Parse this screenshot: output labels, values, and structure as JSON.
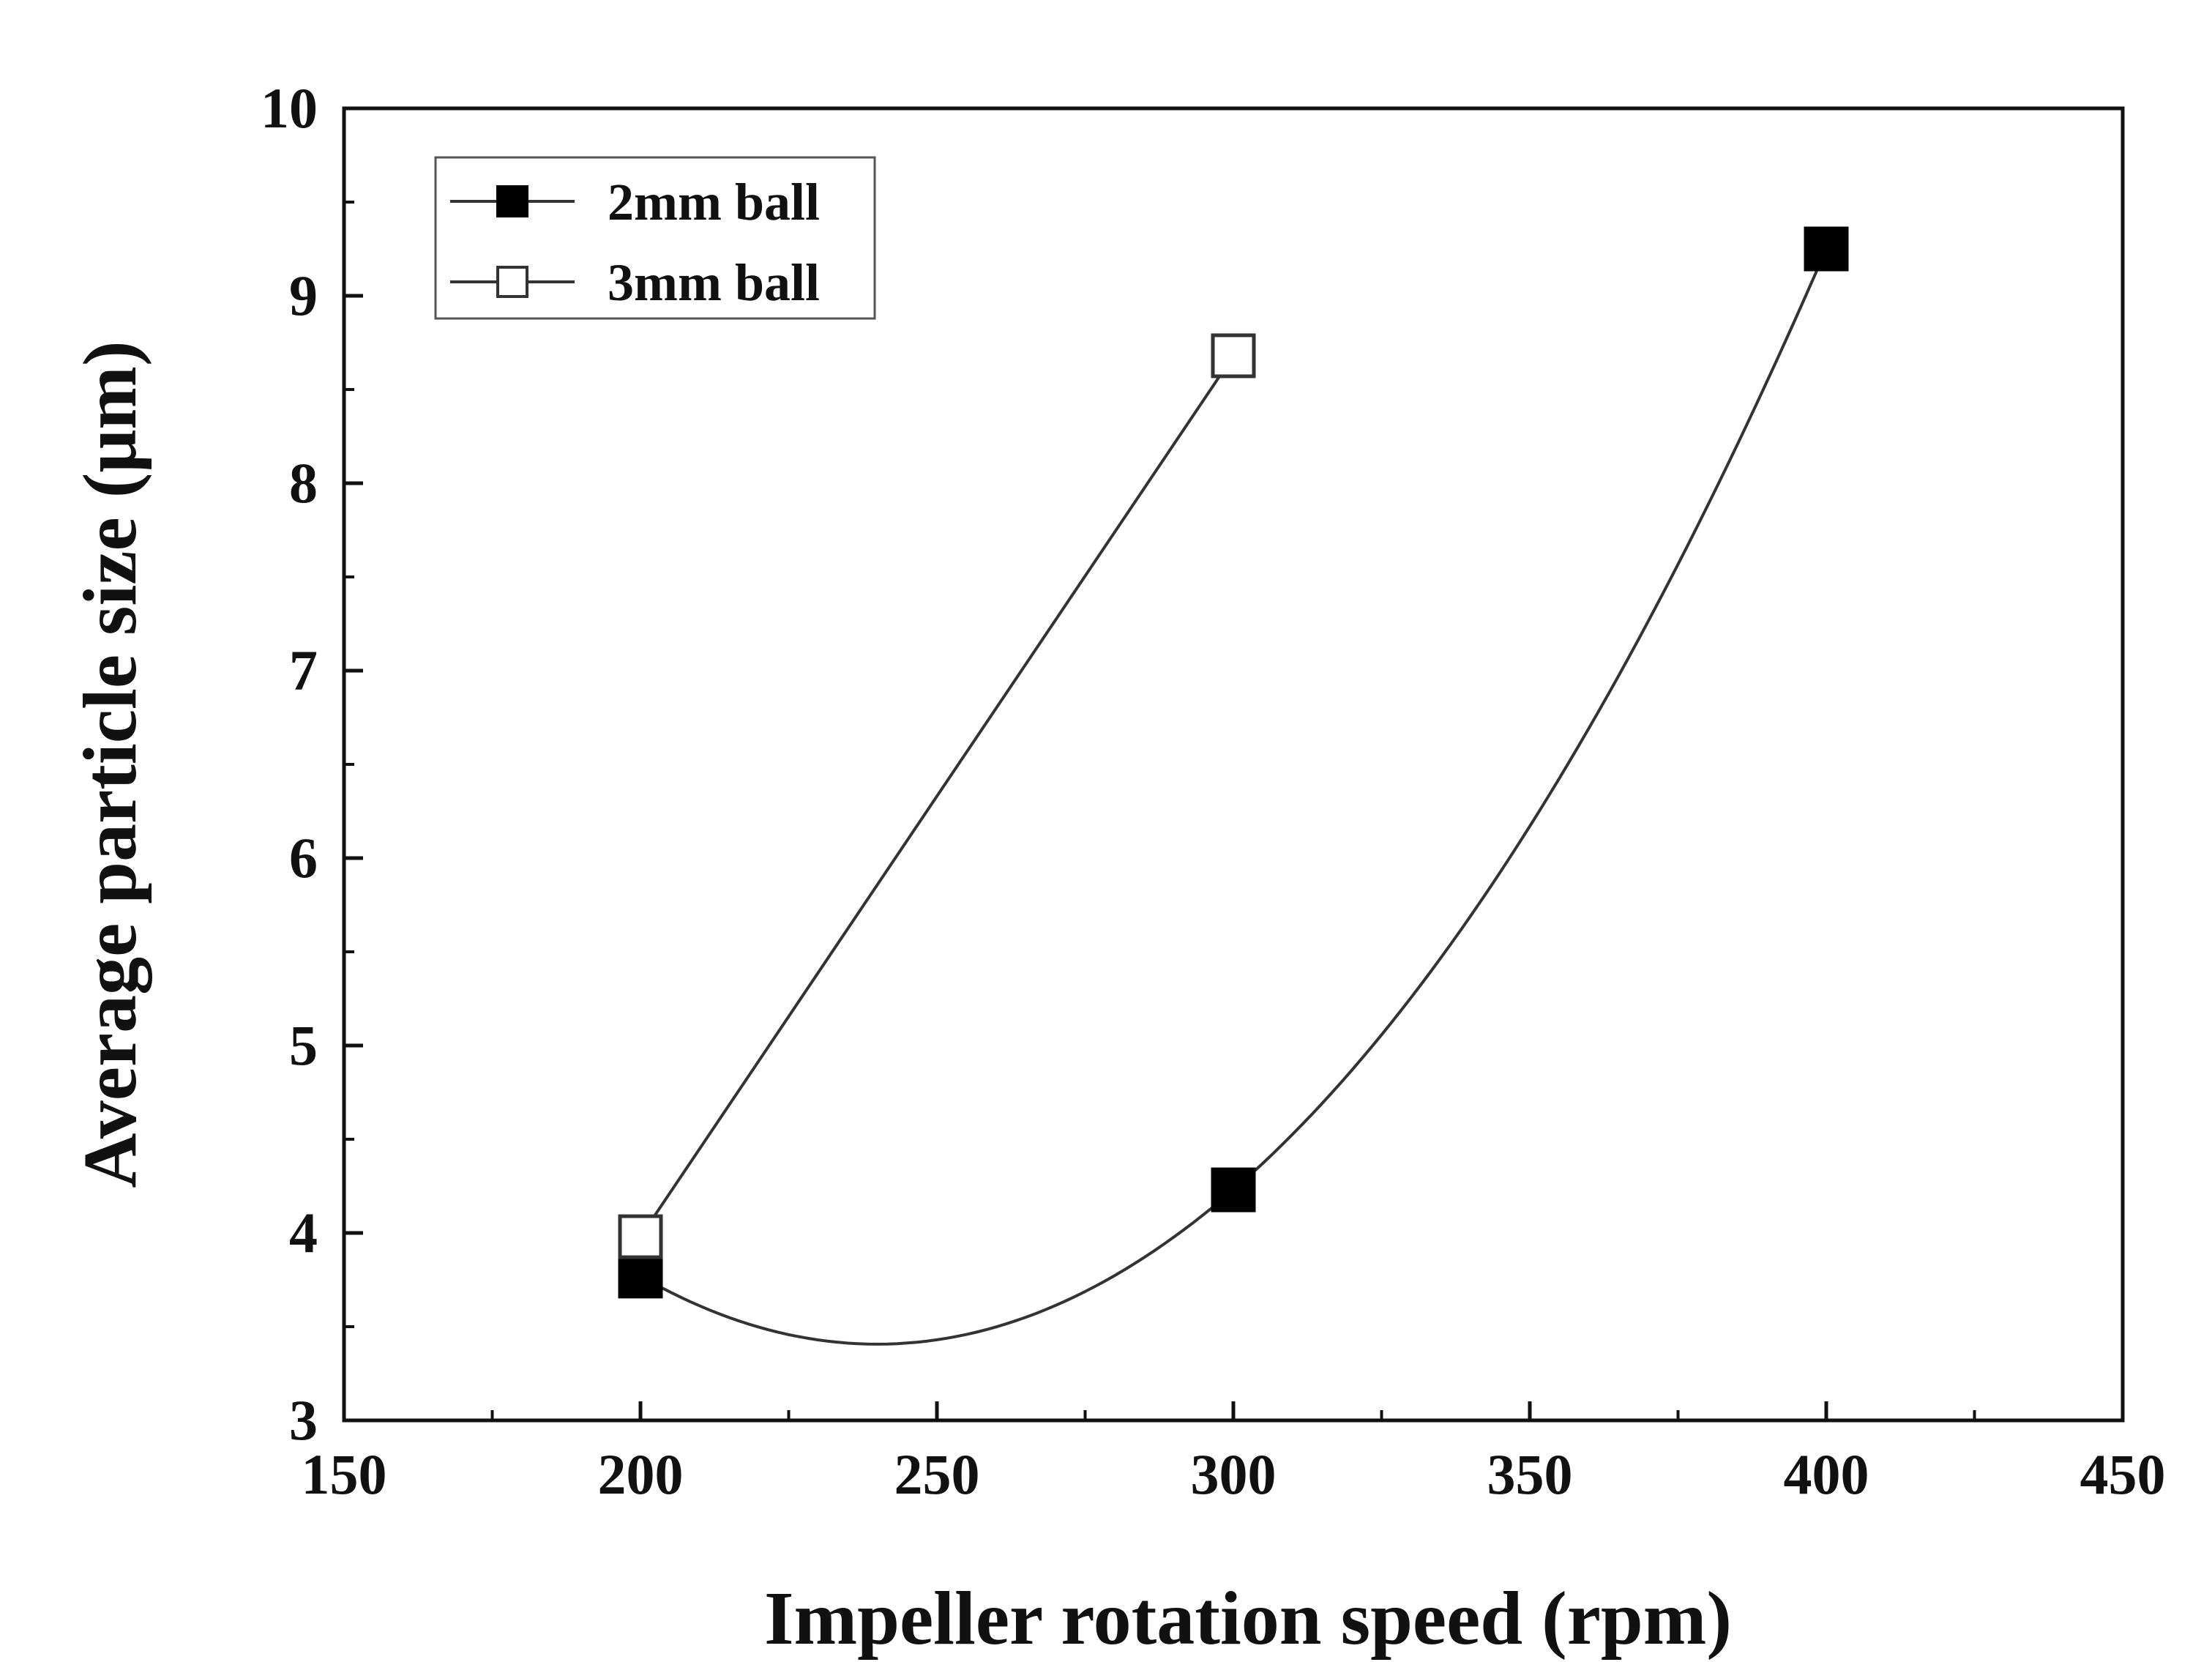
{
  "chart_data": {
    "type": "line",
    "title": "",
    "xlabel": "Impeller rotation speed (rpm)",
    "ylabel": "Average particle size (μm)",
    "xlim": [
      150,
      450
    ],
    "ylim": [
      3,
      10
    ],
    "x_major_ticks": [
      150,
      200,
      250,
      300,
      350,
      400,
      450
    ],
    "x_tick_labels": [
      "150",
      "200",
      "250",
      "300",
      "350",
      "400",
      "450"
    ],
    "x_minor_ticks": [
      175,
      225,
      275,
      325,
      375,
      425
    ],
    "y_major_ticks": [
      3,
      4,
      5,
      6,
      7,
      8,
      9,
      10
    ],
    "y_tick_labels": [
      "3",
      "4",
      "5",
      "6",
      "7",
      "8",
      "9",
      "10"
    ],
    "y_minor_ticks": [
      3.5,
      4.5,
      5.5,
      6.5,
      7.5,
      8.5,
      9.5
    ],
    "grid": false,
    "legend_position": "top-left",
    "series": [
      {
        "name": "2mm ball",
        "marker": "filled-square",
        "color": "#000000",
        "x": [
          200,
          300,
          400
        ],
        "y": [
          3.77,
          4.23,
          9.25
        ],
        "curve": "spline"
      },
      {
        "name": "3mm ball",
        "marker": "open-square",
        "color": "#000000",
        "x": [
          200,
          300
        ],
        "y": [
          3.98,
          8.68
        ],
        "curve": "straight"
      }
    ]
  }
}
